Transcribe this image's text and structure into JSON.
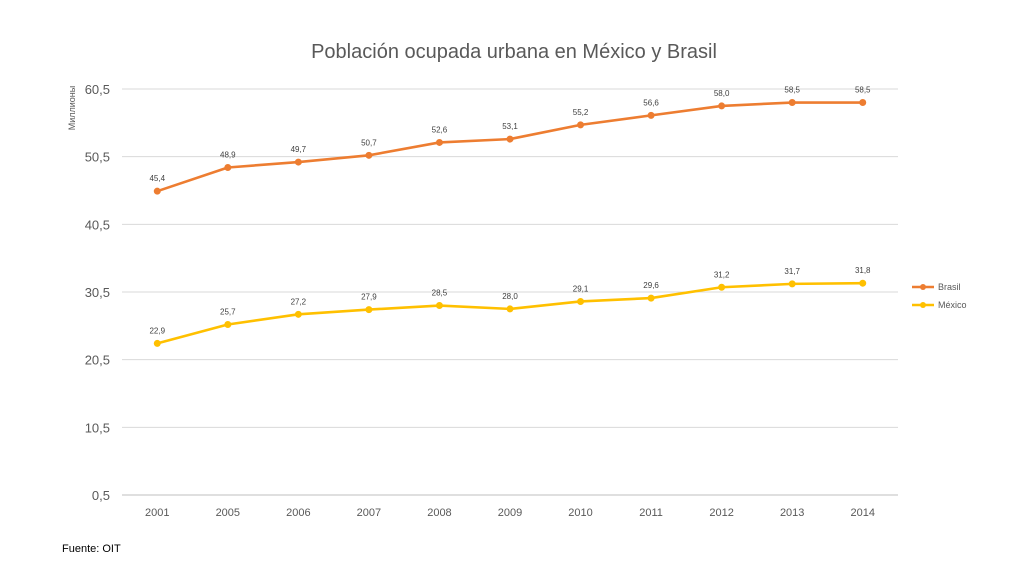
{
  "chart_data": {
    "type": "line",
    "title": "Población ocupada urbana en México y Brasil",
    "xlabel": "",
    "ylabel": "Миллионы",
    "categories": [
      "2001",
      "2005",
      "2006",
      "2007",
      "2008",
      "2009",
      "2010",
      "2011",
      "2012",
      "2013",
      "2014"
    ],
    "yticks": [
      "0,5",
      "10,5",
      "20,5",
      "30,5",
      "40,5",
      "50,5",
      "60,5"
    ],
    "ylim": [
      0.5,
      60.5
    ],
    "grid": true,
    "legend_position": "right",
    "series": [
      {
        "name": "Brasil",
        "color": "#ED7D31",
        "values": [
          45.4,
          48.9,
          49.7,
          50.7,
          52.6,
          53.1,
          55.2,
          56.6,
          58.0,
          58.5,
          58.5
        ],
        "labels": [
          "45,4",
          "48,9",
          "49,7",
          "50,7",
          "52,6",
          "53,1",
          "55,2",
          "56,6",
          "58,0",
          "58,5",
          "58,5"
        ]
      },
      {
        "name": "México",
        "color": "#FFC000",
        "values": [
          22.9,
          25.7,
          27.2,
          27.9,
          28.5,
          28.0,
          29.1,
          29.6,
          31.2,
          31.7,
          31.8
        ],
        "labels": [
          "22,9",
          "25,7",
          "27,2",
          "27,9",
          "28,5",
          "28,0",
          "29,1",
          "29,6",
          "31,2",
          "31,7",
          "31,8"
        ]
      }
    ]
  },
  "source_note": "Fuente: OIT"
}
